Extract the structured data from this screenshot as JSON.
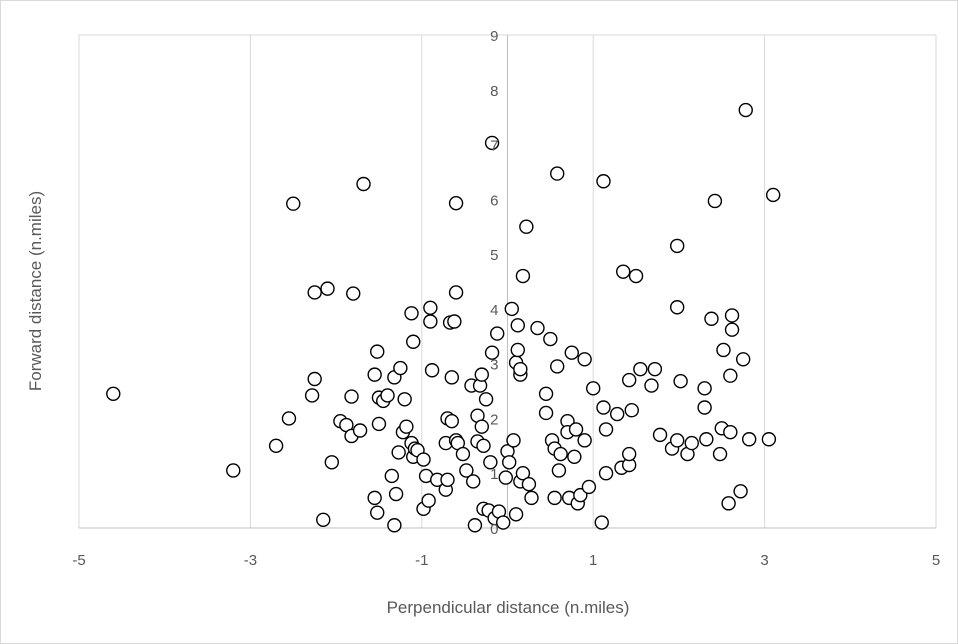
{
  "chart_data": {
    "type": "scatter",
    "xlabel": "Perpendicular distance (n.miles)",
    "ylabel": "Forward distance (n.miles)",
    "xlim": [
      -5,
      5
    ],
    "ylim": [
      0,
      9
    ],
    "x_ticks": [
      -5,
      -3,
      -1,
      1,
      3,
      5
    ],
    "y_ticks": [
      1,
      2,
      3,
      4,
      5,
      6,
      7,
      8,
      9
    ],
    "y_zero_label": "0",
    "grid": {
      "vertical": true,
      "horizontal": false
    },
    "marker": "open-circle",
    "points": [
      [
        -4.6,
        2.45
      ],
      [
        -3.2,
        1.05
      ],
      [
        -2.7,
        1.5
      ],
      [
        -2.55,
        2.0
      ],
      [
        -2.5,
        5.92
      ],
      [
        -2.28,
        2.42
      ],
      [
        -2.25,
        2.72
      ],
      [
        -2.25,
        4.3
      ],
      [
        -2.1,
        4.37
      ],
      [
        -2.15,
        0.15
      ],
      [
        -2.05,
        1.2
      ],
      [
        -1.95,
        1.95
      ],
      [
        -1.88,
        1.88
      ],
      [
        -1.82,
        1.68
      ],
      [
        -1.82,
        2.4
      ],
      [
        -1.8,
        4.28
      ],
      [
        -1.72,
        1.78
      ],
      [
        -1.68,
        6.28
      ],
      [
        -1.55,
        0.55
      ],
      [
        -1.52,
        0.28
      ],
      [
        -1.55,
        2.8
      ],
      [
        -1.52,
        3.22
      ],
      [
        -1.5,
        2.38
      ],
      [
        -1.5,
        1.9
      ],
      [
        -1.45,
        2.32
      ],
      [
        -1.4,
        2.42
      ],
      [
        -1.35,
        0.95
      ],
      [
        -1.32,
        0.05
      ],
      [
        -1.32,
        2.75
      ],
      [
        -1.3,
        0.62
      ],
      [
        -1.27,
        1.38
      ],
      [
        -1.25,
        2.92
      ],
      [
        -1.22,
        1.75
      ],
      [
        -1.2,
        2.35
      ],
      [
        -1.18,
        1.85
      ],
      [
        -1.12,
        1.55
      ],
      [
        -1.12,
        3.92
      ],
      [
        -1.1,
        3.4
      ],
      [
        -1.1,
        1.3
      ],
      [
        -1.08,
        1.45
      ],
      [
        -1.05,
        1.42
      ],
      [
        -0.98,
        1.25
      ],
      [
        -0.98,
        0.35
      ],
      [
        -0.95,
        0.95
      ],
      [
        -0.92,
        0.5
      ],
      [
        -0.9,
        3.77
      ],
      [
        -0.9,
        4.02
      ],
      [
        -0.88,
        2.88
      ],
      [
        -0.82,
        0.88
      ],
      [
        -0.72,
        0.7
      ],
      [
        -0.72,
        1.55
      ],
      [
        -0.7,
        0.88
      ],
      [
        -0.7,
        2.0
      ],
      [
        -0.67,
        3.75
      ],
      [
        -0.65,
        1.95
      ],
      [
        -0.65,
        2.75
      ],
      [
        -0.62,
        3.77
      ],
      [
        -0.6,
        1.6
      ],
      [
        -0.6,
        4.3
      ],
      [
        -0.6,
        5.93
      ],
      [
        -0.58,
        1.55
      ],
      [
        -0.52,
        1.35
      ],
      [
        -0.48,
        1.05
      ],
      [
        -0.42,
        2.6
      ],
      [
        -0.4,
        0.85
      ],
      [
        -0.38,
        0.05
      ],
      [
        -0.35,
        2.05
      ],
      [
        -0.35,
        1.58
      ],
      [
        -0.32,
        2.6
      ],
      [
        -0.3,
        2.8
      ],
      [
        -0.3,
        1.85
      ],
      [
        -0.28,
        0.35
      ],
      [
        -0.28,
        1.5
      ],
      [
        -0.25,
        2.35
      ],
      [
        -0.22,
        0.32
      ],
      [
        -0.2,
        1.2
      ],
      [
        -0.18,
        3.2
      ],
      [
        -0.18,
        7.03
      ],
      [
        -0.15,
        0.18
      ],
      [
        -0.12,
        3.55
      ],
      [
        -0.1,
        0.3
      ],
      [
        -0.05,
        0.1
      ],
      [
        -0.02,
        0.92
      ],
      [
        0.0,
        1.4
      ],
      [
        0.02,
        1.2
      ],
      [
        0.05,
        4.0
      ],
      [
        0.07,
        1.6
      ],
      [
        0.1,
        0.25
      ],
      [
        0.1,
        3.02
      ],
      [
        0.12,
        3.7
      ],
      [
        0.12,
        3.25
      ],
      [
        0.15,
        2.8
      ],
      [
        0.15,
        2.9
      ],
      [
        0.15,
        0.85
      ],
      [
        0.18,
        1.0
      ],
      [
        0.18,
        4.6
      ],
      [
        0.22,
        5.5
      ],
      [
        0.25,
        0.8
      ],
      [
        0.28,
        0.55
      ],
      [
        0.35,
        3.65
      ],
      [
        0.45,
        2.1
      ],
      [
        0.45,
        2.45
      ],
      [
        0.5,
        3.45
      ],
      [
        0.52,
        1.6
      ],
      [
        0.55,
        0.55
      ],
      [
        0.55,
        1.45
      ],
      [
        0.58,
        2.95
      ],
      [
        0.58,
        6.47
      ],
      [
        0.6,
        1.05
      ],
      [
        0.62,
        1.35
      ],
      [
        0.7,
        1.95
      ],
      [
        0.7,
        1.75
      ],
      [
        0.72,
        0.55
      ],
      [
        0.75,
        3.2
      ],
      [
        0.78,
        1.3
      ],
      [
        0.8,
        1.8
      ],
      [
        0.82,
        0.45
      ],
      [
        0.85,
        0.6
      ],
      [
        0.9,
        1.6
      ],
      [
        0.9,
        3.08
      ],
      [
        0.95,
        0.75
      ],
      [
        1.0,
        2.55
      ],
      [
        1.1,
        0.1
      ],
      [
        1.12,
        2.2
      ],
      [
        1.12,
        6.33
      ],
      [
        1.15,
        1.8
      ],
      [
        1.15,
        1.0
      ],
      [
        1.28,
        2.08
      ],
      [
        1.33,
        1.1
      ],
      [
        1.35,
        4.68
      ],
      [
        1.42,
        1.15
      ],
      [
        1.42,
        2.7
      ],
      [
        1.42,
        1.35
      ],
      [
        1.45,
        2.15
      ],
      [
        1.5,
        4.6
      ],
      [
        1.55,
        2.9
      ],
      [
        1.68,
        2.6
      ],
      [
        1.72,
        2.9
      ],
      [
        1.78,
        1.7
      ],
      [
        1.92,
        1.45
      ],
      [
        1.98,
        1.6
      ],
      [
        1.98,
        4.03
      ],
      [
        1.98,
        5.15
      ],
      [
        2.02,
        2.68
      ],
      [
        2.1,
        1.35
      ],
      [
        2.15,
        1.55
      ],
      [
        2.3,
        2.55
      ],
      [
        2.3,
        2.2
      ],
      [
        2.32,
        1.62
      ],
      [
        2.38,
        3.82
      ],
      [
        2.42,
        5.97
      ],
      [
        2.48,
        1.35
      ],
      [
        2.5,
        1.82
      ],
      [
        2.52,
        3.25
      ],
      [
        2.58,
        0.45
      ],
      [
        2.6,
        1.75
      ],
      [
        2.6,
        2.78
      ],
      [
        2.62,
        3.62
      ],
      [
        2.62,
        3.88
      ],
      [
        2.72,
        0.67
      ],
      [
        2.75,
        3.08
      ],
      [
        2.78,
        7.63
      ],
      [
        2.82,
        1.62
      ],
      [
        3.05,
        1.62
      ],
      [
        3.1,
        6.08
      ]
    ]
  }
}
